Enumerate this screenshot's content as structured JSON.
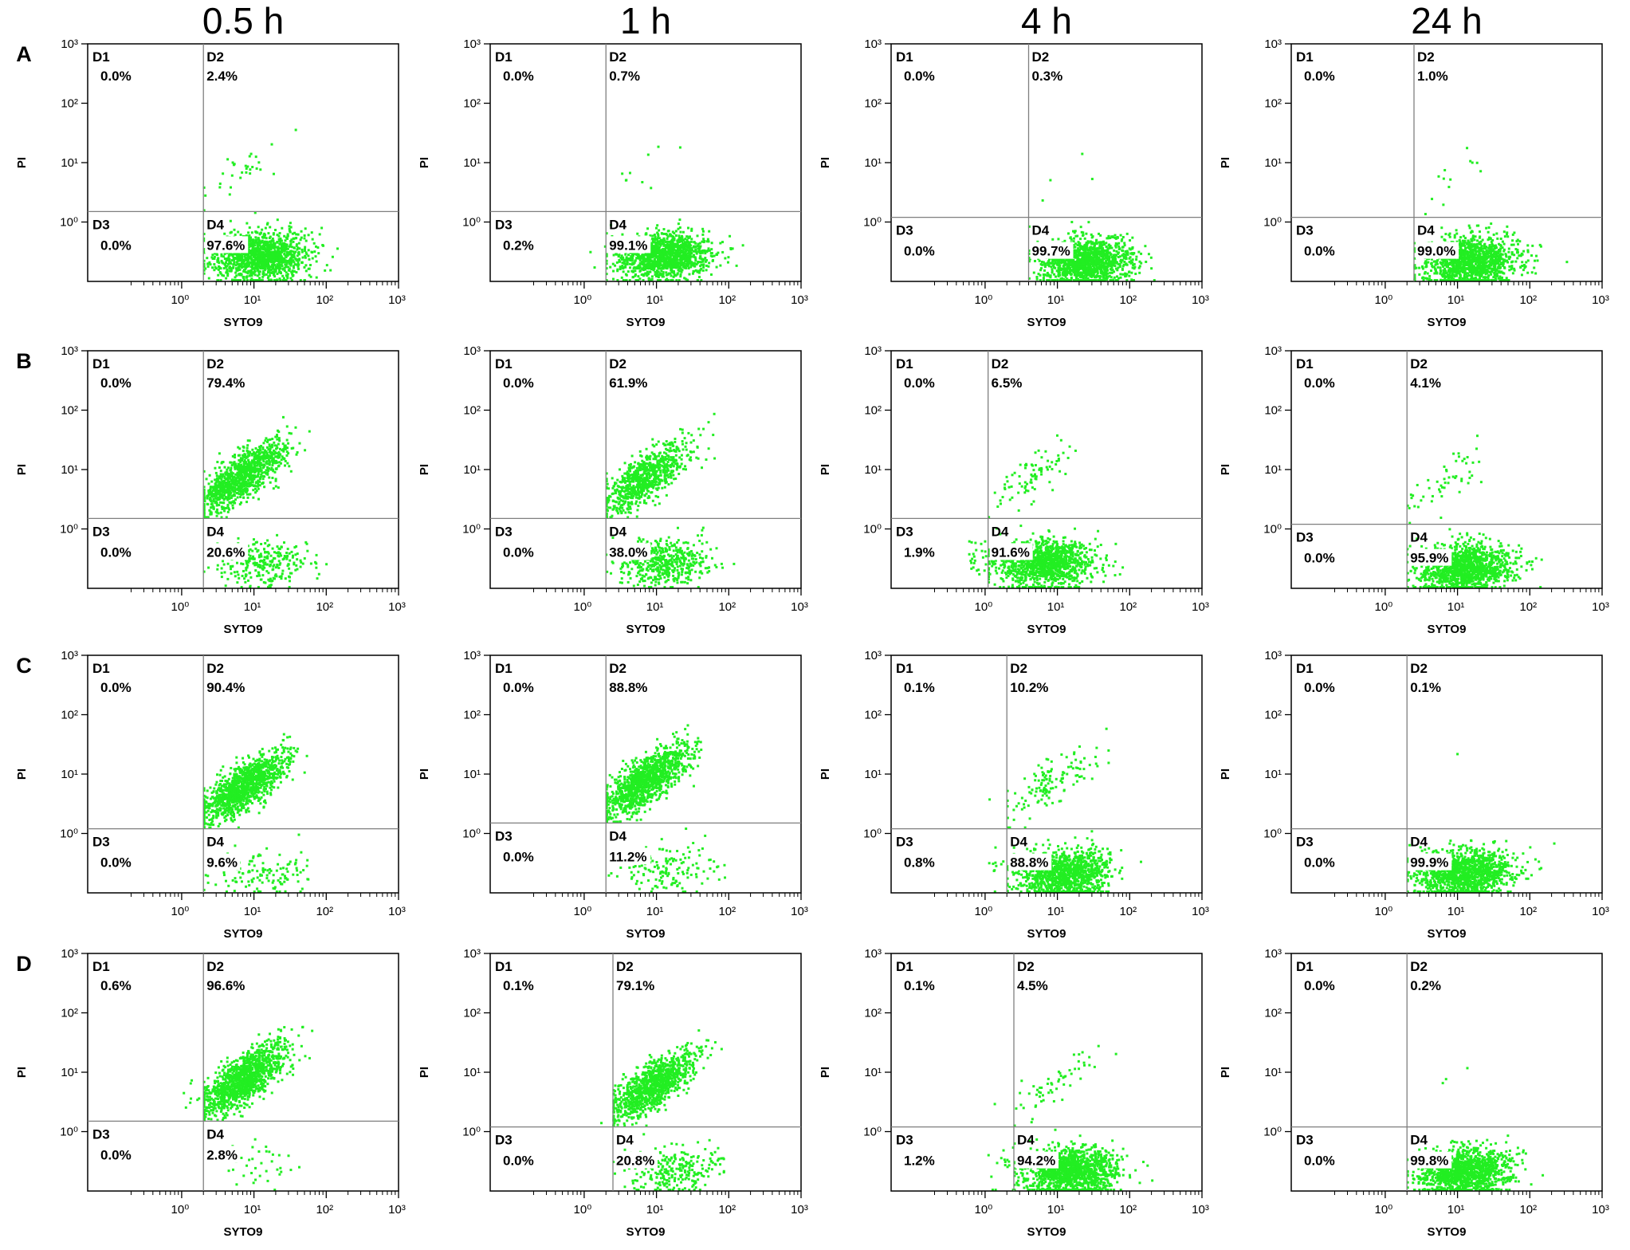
{
  "figure": {
    "columns": [
      "0.5 h",
      "1 h",
      "4 h",
      "24 h"
    ],
    "rows": [
      "A",
      "B",
      "C",
      "D"
    ]
  },
  "colors": {
    "dots": "#22ee22",
    "axis": "#000000",
    "gate": "#7f7f7f"
  },
  "chart_data": {
    "type": "scatter",
    "xlabel": "SYTO9",
    "ylabel": "PI",
    "xscale": "log",
    "yscale": "log",
    "tick_labels": [
      "10^0",
      "10^1",
      "10^2",
      "10^3"
    ],
    "quadrant_names": [
      "D1",
      "D2",
      "D3",
      "D4"
    ],
    "panels": [
      {
        "row": "A",
        "time": "0.5 h",
        "gate": {
          "x": 2,
          "y": 1.5
        },
        "quadrants": {
          "D1": "0.0%",
          "D2": "2.4%",
          "D3": "0.0%",
          "D4": "97.6%"
        }
      },
      {
        "row": "A",
        "time": "1 h",
        "gate": {
          "x": 2,
          "y": 1.5
        },
        "quadrants": {
          "D1": "0.0%",
          "D2": "0.7%",
          "D3": "0.2%",
          "D4": "99.1%"
        }
      },
      {
        "row": "A",
        "time": "4 h",
        "gate": {
          "x": 4,
          "y": 1.2
        },
        "quadrants": {
          "D1": "0.0%",
          "D2": "0.3%",
          "D3": "0.0%",
          "D4": "99.7%"
        }
      },
      {
        "row": "A",
        "time": "24 h",
        "gate": {
          "x": 2.5,
          "y": 1.2
        },
        "quadrants": {
          "D1": "0.0%",
          "D2": "1.0%",
          "D3": "0.0%",
          "D4": "99.0%"
        }
      },
      {
        "row": "B",
        "time": "0.5 h",
        "gate": {
          "x": 2,
          "y": 1.5
        },
        "quadrants": {
          "D1": "0.0%",
          "D2": "79.4%",
          "D3": "0.0%",
          "D4": "20.6%"
        }
      },
      {
        "row": "B",
        "time": "1 h",
        "gate": {
          "x": 2,
          "y": 1.5
        },
        "quadrants": {
          "D1": "0.0%",
          "D2": "61.9%",
          "D3": "0.0%",
          "D4": "38.0%"
        }
      },
      {
        "row": "B",
        "time": "4 h",
        "gate": {
          "x": 1.1,
          "y": 1.5
        },
        "quadrants": {
          "D1": "0.0%",
          "D2": "6.5%",
          "D3": "1.9%",
          "D4": "91.6%"
        }
      },
      {
        "row": "B",
        "time": "24 h",
        "gate": {
          "x": 2,
          "y": 1.2
        },
        "quadrants": {
          "D1": "0.0%",
          "D2": "4.1%",
          "D3": "0.0%",
          "D4": "95.9%"
        }
      },
      {
        "row": "C",
        "time": "0.5 h",
        "gate": {
          "x": 2,
          "y": 1.2
        },
        "quadrants": {
          "D1": "0.0%",
          "D2": "90.4%",
          "D3": "0.0%",
          "D4": "9.6%"
        }
      },
      {
        "row": "C",
        "time": "1 h",
        "gate": {
          "x": 2,
          "y": 1.5
        },
        "quadrants": {
          "D1": "0.0%",
          "D2": "88.8%",
          "D3": "0.0%",
          "D4": "11.2%"
        }
      },
      {
        "row": "C",
        "time": "4 h",
        "gate": {
          "x": 2,
          "y": 1.2
        },
        "quadrants": {
          "D1": "0.1%",
          "D2": "10.2%",
          "D3": "0.8%",
          "D4": "88.8%"
        }
      },
      {
        "row": "C",
        "time": "24 h",
        "gate": {
          "x": 2,
          "y": 1.2
        },
        "quadrants": {
          "D1": "0.0%",
          "D2": "0.1%",
          "D3": "0.0%",
          "D4": "99.9%"
        }
      },
      {
        "row": "D",
        "time": "0.5 h",
        "gate": {
          "x": 2,
          "y": 1.5
        },
        "quadrants": {
          "D1": "0.6%",
          "D2": "96.6%",
          "D3": "0.0%",
          "D4": "2.8%"
        }
      },
      {
        "row": "D",
        "time": "1 h",
        "gate": {
          "x": 2.5,
          "y": 1.2
        },
        "quadrants": {
          "D1": "0.1%",
          "D2": "79.1%",
          "D3": "0.0%",
          "D4": "20.8%"
        }
      },
      {
        "row": "D",
        "time": "4 h",
        "gate": {
          "x": 2.5,
          "y": 1.2
        },
        "quadrants": {
          "D1": "0.1%",
          "D2": "4.5%",
          "D3": "1.2%",
          "D4": "94.2%"
        }
      },
      {
        "row": "D",
        "time": "24 h",
        "gate": {
          "x": 2,
          "y": 1.2
        },
        "quadrants": {
          "D1": "0.0%",
          "D2": "0.2%",
          "D3": "0.0%",
          "D4": "99.8%"
        }
      }
    ]
  }
}
